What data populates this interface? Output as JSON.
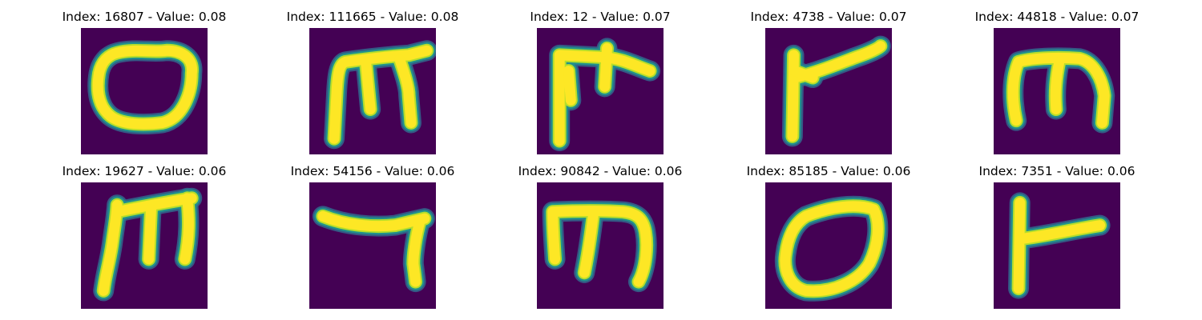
{
  "figure": {
    "colors": {
      "background": "#440154",
      "stroke_core": "#fde725",
      "stroke_mid": "#b5de2b",
      "stroke_edge": "#21918c",
      "stroke_outer": "#31688e"
    },
    "panels": [
      {
        "title": "Index: 16807 - Value: 0.08",
        "glyph": "o-loop"
      },
      {
        "title": "Index: 111665 - Value: 0.08",
        "glyph": "m-shape"
      },
      {
        "title": "Index: 12 - Value: 0.07",
        "glyph": "t-shape"
      },
      {
        "title": "Index: 4738 - Value: 0.07",
        "glyph": "check-stroke"
      },
      {
        "title": "Index: 44818 - Value: 0.07",
        "glyph": "m-round"
      },
      {
        "title": "Index: 19627 - Value: 0.06",
        "glyph": "m-shape-tall"
      },
      {
        "title": "Index: 54156 - Value: 0.06",
        "glyph": "hook-stroke"
      },
      {
        "title": "Index: 90842 - Value: 0.06",
        "glyph": "m-round-2"
      },
      {
        "title": "Index: 85185 - Value: 0.06",
        "glyph": "o-tilt"
      },
      {
        "title": "Index: 7351 - Value: 0.06",
        "glyph": "l-flag"
      }
    ]
  }
}
